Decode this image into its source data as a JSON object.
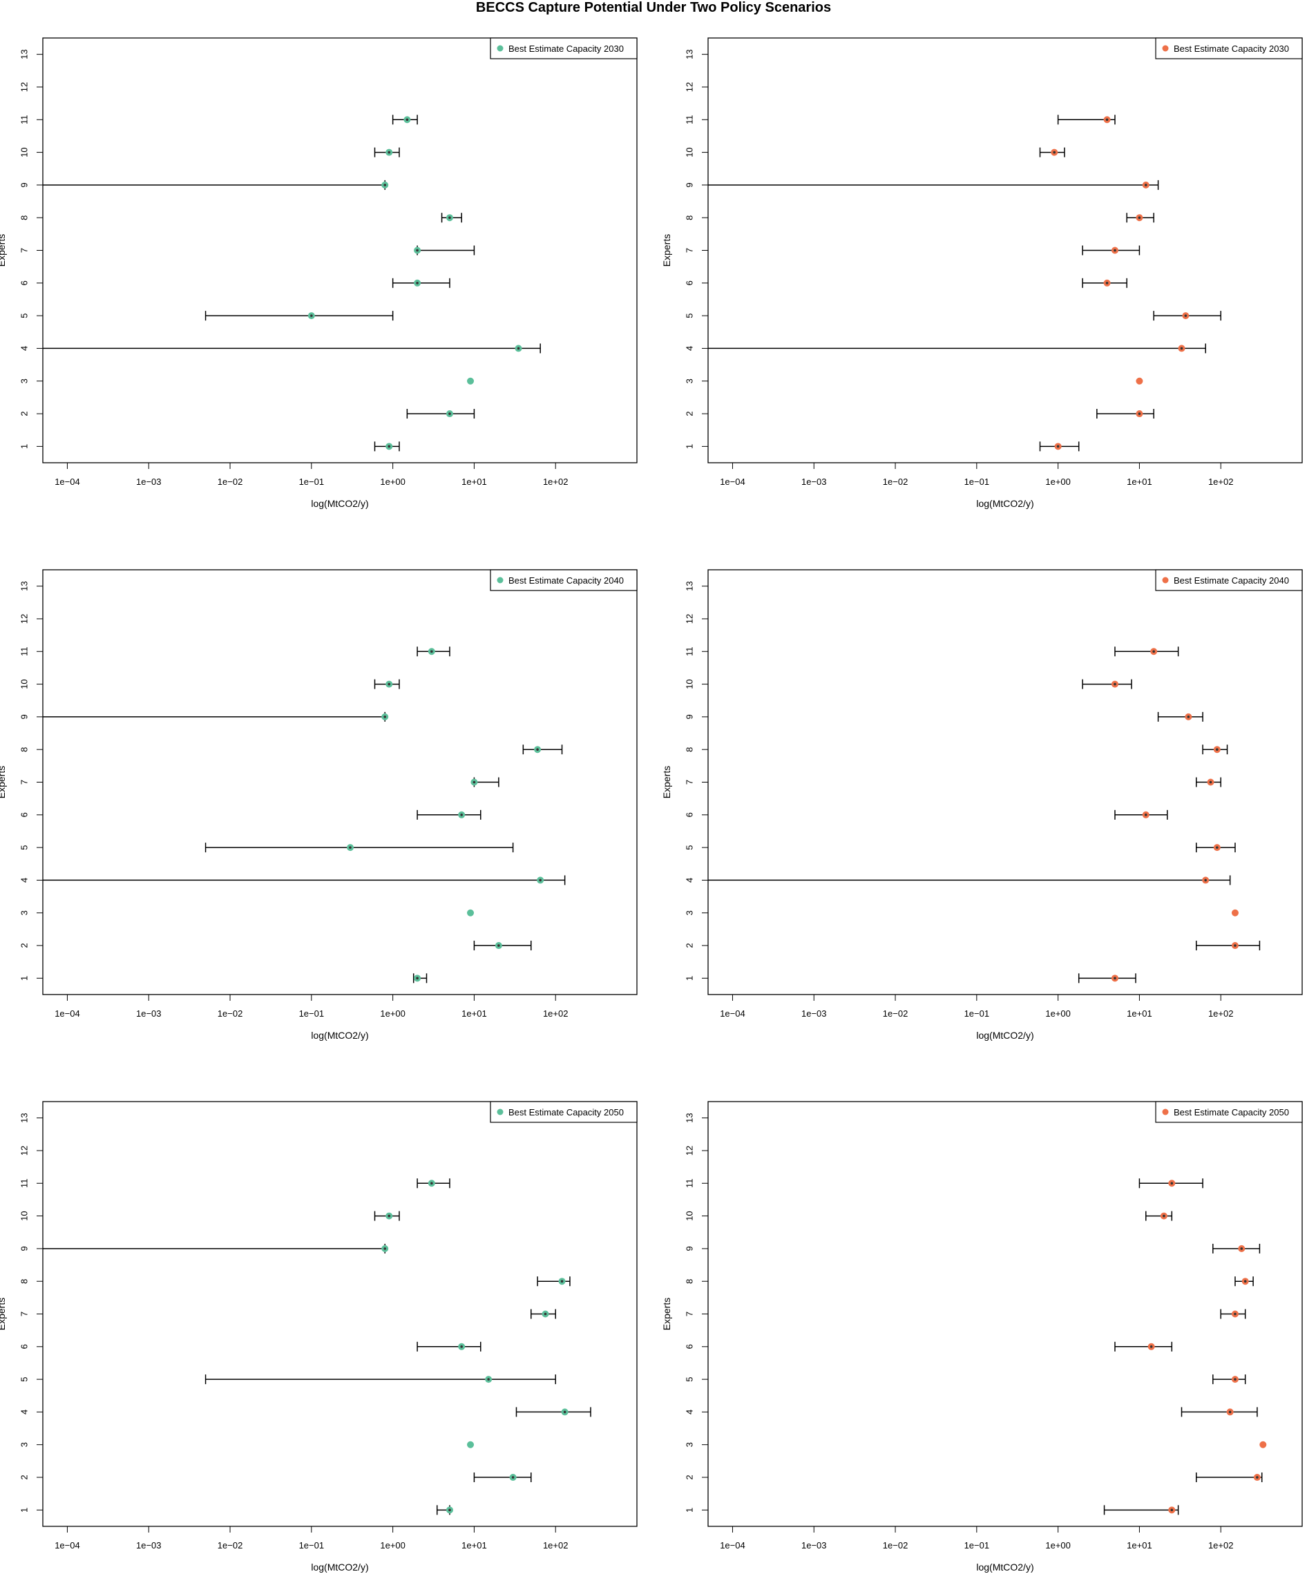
{
  "title": "BECCS Capture Potential Under Two Policy Scenarios",
  "colors": {
    "green": "#5bbf9a",
    "orange": "#ee7048",
    "marker_center": "#333333"
  },
  "chart_data": [
    {
      "type": "scatter",
      "title": "",
      "xlabel": "log(MtCO2/y)",
      "ylabel": "Experts",
      "x_scale": "log10",
      "xlim": [
        5e-05,
        1000
      ],
      "ylim": [
        0.5,
        13.5
      ],
      "xtick_labels": [
        "1e−04",
        "1e−03",
        "1e−02",
        "1e−01",
        "1e+00",
        "1e+01",
        "1e+02"
      ],
      "yticks": [
        1,
        2,
        3,
        4,
        5,
        6,
        7,
        8,
        9,
        10,
        11,
        12,
        13
      ],
      "legend": "Best Estimate Capacity 2030",
      "legend_position": "top-right",
      "color": "#5bbf9a",
      "points": [
        {
          "expert": 1,
          "best": 0.9,
          "low": 0.6,
          "high": 1.2
        },
        {
          "expert": 2,
          "best": 5,
          "low": 1.5,
          "high": 10
        },
        {
          "expert": 3,
          "best": 9,
          "low": null,
          "high": null
        },
        {
          "expert": 4,
          "best": 35,
          "low": 5e-05,
          "high": 65
        },
        {
          "expert": 5,
          "best": 0.1,
          "low": 0.005,
          "high": 1
        },
        {
          "expert": 6,
          "best": 2,
          "low": 1,
          "high": 5
        },
        {
          "expert": 7,
          "best": 2,
          "low": 2,
          "high": 10
        },
        {
          "expert": 8,
          "best": 5,
          "low": 4,
          "high": 7
        },
        {
          "expert": 9,
          "best": 0.8,
          "low": 5e-05,
          "high": 0.8
        },
        {
          "expert": 10,
          "best": 0.9,
          "low": 0.6,
          "high": 1.2
        },
        {
          "expert": 11,
          "best": 1.5,
          "low": 1,
          "high": 2
        }
      ]
    },
    {
      "type": "scatter",
      "title": "",
      "xlabel": "log(MtCO2/y)",
      "ylabel": "Experts",
      "x_scale": "log10",
      "xlim": [
        5e-05,
        1000
      ],
      "ylim": [
        0.5,
        13.5
      ],
      "xtick_labels": [
        "1e−04",
        "1e−03",
        "1e−02",
        "1e−01",
        "1e+00",
        "1e+01",
        "1e+02"
      ],
      "yticks": [
        1,
        2,
        3,
        4,
        5,
        6,
        7,
        8,
        9,
        10,
        11,
        12,
        13
      ],
      "legend": "Best Estimate Capacity 2030",
      "legend_position": "top-right",
      "color": "#ee7048",
      "points": [
        {
          "expert": 1,
          "best": 1,
          "low": 0.6,
          "high": 1.8
        },
        {
          "expert": 2,
          "best": 10,
          "low": 3,
          "high": 15
        },
        {
          "expert": 3,
          "best": 10,
          "low": null,
          "high": null
        },
        {
          "expert": 4,
          "best": 33,
          "low": 5e-05,
          "high": 65
        },
        {
          "expert": 5,
          "best": 37,
          "low": 15,
          "high": 100
        },
        {
          "expert": 6,
          "best": 4,
          "low": 2,
          "high": 7
        },
        {
          "expert": 7,
          "best": 5,
          "low": 2,
          "high": 10
        },
        {
          "expert": 8,
          "best": 10,
          "low": 7,
          "high": 15
        },
        {
          "expert": 9,
          "best": 12,
          "low": 5e-05,
          "high": 17
        },
        {
          "expert": 10,
          "best": 0.9,
          "low": 0.6,
          "high": 1.2
        },
        {
          "expert": 11,
          "best": 4,
          "low": 1,
          "high": 5
        }
      ]
    },
    {
      "type": "scatter",
      "title": "",
      "xlabel": "log(MtCO2/y)",
      "ylabel": "Experts",
      "x_scale": "log10",
      "xlim": [
        5e-05,
        1000
      ],
      "ylim": [
        0.5,
        13.5
      ],
      "xtick_labels": [
        "1e−04",
        "1e−03",
        "1e−02",
        "1e−01",
        "1e+00",
        "1e+01",
        "1e+02"
      ],
      "yticks": [
        1,
        2,
        3,
        4,
        5,
        6,
        7,
        8,
        9,
        10,
        11,
        12,
        13
      ],
      "legend": "Best Estimate Capacity 2040",
      "legend_position": "top-right",
      "color": "#5bbf9a",
      "points": [
        {
          "expert": 1,
          "best": 2,
          "low": 1.8,
          "high": 2.6
        },
        {
          "expert": 2,
          "best": 20,
          "low": 10,
          "high": 50
        },
        {
          "expert": 3,
          "best": 9,
          "low": null,
          "high": null
        },
        {
          "expert": 4,
          "best": 65,
          "low": 5e-05,
          "high": 130
        },
        {
          "expert": 5,
          "best": 0.3,
          "low": 0.005,
          "high": 30
        },
        {
          "expert": 6,
          "best": 7,
          "low": 2,
          "high": 12
        },
        {
          "expert": 7,
          "best": 10,
          "low": 10,
          "high": 20
        },
        {
          "expert": 8,
          "best": 60,
          "low": 40,
          "high": 120
        },
        {
          "expert": 9,
          "best": 0.8,
          "low": 5e-05,
          "high": 0.8
        },
        {
          "expert": 10,
          "best": 0.9,
          "low": 0.6,
          "high": 1.2
        },
        {
          "expert": 11,
          "best": 3,
          "low": 2,
          "high": 5
        }
      ]
    },
    {
      "type": "scatter",
      "title": "",
      "xlabel": "log(MtCO2/y)",
      "ylabel": "Experts",
      "x_scale": "log10",
      "xlim": [
        5e-05,
        1000
      ],
      "ylim": [
        0.5,
        13.5
      ],
      "xtick_labels": [
        "1e−04",
        "1e−03",
        "1e−02",
        "1e−01",
        "1e+00",
        "1e+01",
        "1e+02"
      ],
      "yticks": [
        1,
        2,
        3,
        4,
        5,
        6,
        7,
        8,
        9,
        10,
        11,
        12,
        13
      ],
      "legend": "Best Estimate Capacity 2040",
      "legend_position": "top-right",
      "color": "#ee7048",
      "points": [
        {
          "expert": 1,
          "best": 5,
          "low": 1.8,
          "high": 9
        },
        {
          "expert": 2,
          "best": 150,
          "low": 50,
          "high": 300
        },
        {
          "expert": 3,
          "best": 150,
          "low": null,
          "high": null
        },
        {
          "expert": 4,
          "best": 65,
          "low": 5e-05,
          "high": 130
        },
        {
          "expert": 5,
          "best": 90,
          "low": 50,
          "high": 150
        },
        {
          "expert": 6,
          "best": 12,
          "low": 5,
          "high": 22
        },
        {
          "expert": 7,
          "best": 75,
          "low": 50,
          "high": 100
        },
        {
          "expert": 8,
          "best": 90,
          "low": 60,
          "high": 120
        },
        {
          "expert": 9,
          "best": 40,
          "low": 17,
          "high": 60
        },
        {
          "expert": 10,
          "best": 5,
          "low": 2,
          "high": 8
        },
        {
          "expert": 11,
          "best": 15,
          "low": 5,
          "high": 30
        }
      ]
    },
    {
      "type": "scatter",
      "title": "",
      "xlabel": "log(MtCO2/y)",
      "ylabel": "Experts",
      "x_scale": "log10",
      "xlim": [
        5e-05,
        1000
      ],
      "ylim": [
        0.5,
        13.5
      ],
      "xtick_labels": [
        "1e−04",
        "1e−03",
        "1e−02",
        "1e−01",
        "1e+00",
        "1e+01",
        "1e+02"
      ],
      "yticks": [
        1,
        2,
        3,
        4,
        5,
        6,
        7,
        8,
        9,
        10,
        11,
        12,
        13
      ],
      "legend": "Best Estimate Capacity 2050",
      "legend_position": "top-right",
      "color": "#5bbf9a",
      "points": [
        {
          "expert": 1,
          "best": 5,
          "low": 3.5,
          "high": 5
        },
        {
          "expert": 2,
          "best": 30,
          "low": 10,
          "high": 50
        },
        {
          "expert": 3,
          "best": 9,
          "low": null,
          "high": null
        },
        {
          "expert": 4,
          "best": 130,
          "low": 33,
          "high": 270
        },
        {
          "expert": 5,
          "best": 15,
          "low": 0.005,
          "high": 100
        },
        {
          "expert": 6,
          "best": 7,
          "low": 2,
          "high": 12
        },
        {
          "expert": 7,
          "best": 75,
          "low": 50,
          "high": 100
        },
        {
          "expert": 8,
          "best": 120,
          "low": 60,
          "high": 150
        },
        {
          "expert": 9,
          "best": 0.8,
          "low": 5e-05,
          "high": 0.8
        },
        {
          "expert": 10,
          "best": 0.9,
          "low": 0.6,
          "high": 1.2
        },
        {
          "expert": 11,
          "best": 3,
          "low": 2,
          "high": 5
        }
      ]
    },
    {
      "type": "scatter",
      "title": "",
      "xlabel": "log(MtCO2/y)",
      "ylabel": "Experts",
      "x_scale": "log10",
      "xlim": [
        5e-05,
        1000
      ],
      "ylim": [
        0.5,
        13.5
      ],
      "xtick_labels": [
        "1e−04",
        "1e−03",
        "1e−02",
        "1e−01",
        "1e+00",
        "1e+01",
        "1e+02"
      ],
      "yticks": [
        1,
        2,
        3,
        4,
        5,
        6,
        7,
        8,
        9,
        10,
        11,
        12,
        13
      ],
      "legend": "Best Estimate Capacity 2050",
      "legend_position": "top-right",
      "color": "#ee7048",
      "points": [
        {
          "expert": 1,
          "best": 25,
          "low": 3.7,
          "high": 30
        },
        {
          "expert": 2,
          "best": 280,
          "low": 50,
          "high": 320
        },
        {
          "expert": 3,
          "best": 330,
          "low": null,
          "high": null
        },
        {
          "expert": 4,
          "best": 130,
          "low": 33,
          "high": 280
        },
        {
          "expert": 5,
          "best": 150,
          "low": 80,
          "high": 200
        },
        {
          "expert": 6,
          "best": 14,
          "low": 5,
          "high": 25
        },
        {
          "expert": 7,
          "best": 150,
          "low": 100,
          "high": 200
        },
        {
          "expert": 8,
          "best": 200,
          "low": 150,
          "high": 250
        },
        {
          "expert": 9,
          "best": 180,
          "low": 80,
          "high": 300
        },
        {
          "expert": 10,
          "best": 20,
          "low": 12,
          "high": 25
        },
        {
          "expert": 11,
          "best": 25,
          "low": 10,
          "high": 60
        }
      ]
    }
  ]
}
